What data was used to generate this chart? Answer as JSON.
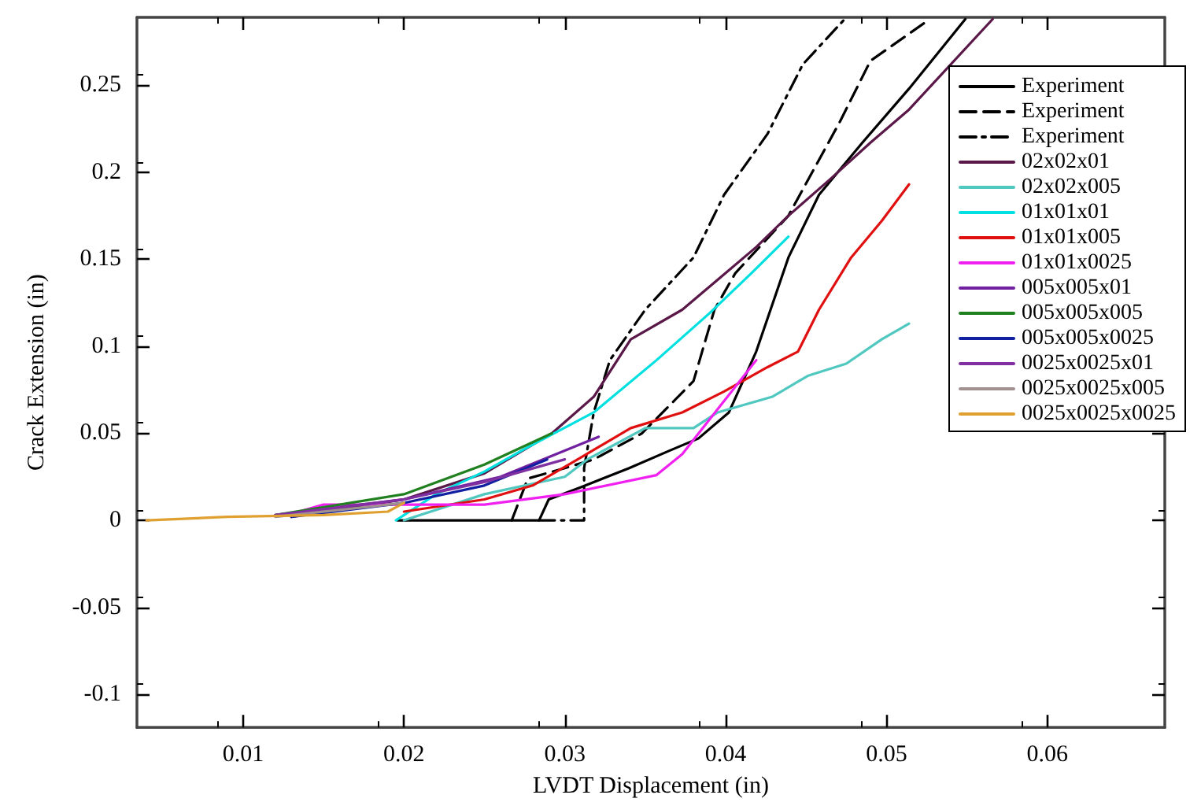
{
  "chart_data": {
    "type": "line",
    "xlabel": "LVDT Displacement (in)",
    "ylabel": "Crack Extension (in)",
    "xlim": [
      0.0034,
      0.0673
    ],
    "xticks": [
      0.01,
      0.02,
      0.03,
      0.04,
      0.05,
      0.06
    ],
    "ylim": [
      -0.119,
      0.289
    ],
    "yticks": [
      -0.1,
      -0.05,
      0,
      0.05,
      0.1,
      0.15,
      0.2,
      0.25
    ],
    "grid": false,
    "legend": "top right",
    "marker": "none",
    "series": [
      {
        "name": "Experiment",
        "color": "#000000",
        "line_style": "solid",
        "x": [
          0.0196,
          0.0284,
          0.029,
          0.031,
          0.034,
          0.0365,
          0.0383,
          0.0402,
          0.0419,
          0.0439,
          0.0458,
          0.0485,
          0.0514,
          0.0549
        ],
        "values": [
          0,
          0,
          0.012,
          0.019,
          0.03,
          0.04,
          0.047,
          0.062,
          0.097,
          0.151,
          0.187,
          0.217,
          0.248,
          0.288
        ]
      },
      {
        "name": "Experiment",
        "color": "#000000",
        "line_style": "dashed",
        "x": [
          0.0267,
          0.0277,
          0.03,
          0.0318,
          0.0348,
          0.038,
          0.0393,
          0.0406,
          0.0439,
          0.0471,
          0.049,
          0.0527
        ],
        "values": [
          0,
          0.024,
          0.03,
          0.035,
          0.05,
          0.08,
          0.121,
          0.142,
          0.175,
          0.229,
          0.264,
          0.288
        ]
      },
      {
        "name": "Experiment",
        "color": "#000000",
        "line_style": "dashdot",
        "x": [
          0.0284,
          0.0312,
          0.0312,
          0.0318,
          0.0328,
          0.035,
          0.038,
          0.0399,
          0.0426,
          0.0448,
          0.0475
        ],
        "values": [
          0,
          0,
          0.03,
          0.062,
          0.092,
          0.121,
          0.151,
          0.187,
          0.222,
          0.262,
          0.289
        ]
      },
      {
        "name": "02x02x01",
        "color": "#5a1848",
        "x": [
          0.013,
          0.015,
          0.02,
          0.025,
          0.0292,
          0.0318,
          0.0341,
          0.0373,
          0.0396,
          0.0419,
          0.0439,
          0.0465,
          0.049,
          0.0514,
          0.0566
        ],
        "values": [
          0.002,
          0.005,
          0.012,
          0.027,
          0.05,
          0.071,
          0.104,
          0.121,
          0.139,
          0.157,
          0.175,
          0.196,
          0.217,
          0.236,
          0.288
        ]
      },
      {
        "name": "02x02x005",
        "color": "#50c8c0",
        "x": [
          0.02,
          0.025,
          0.03,
          0.0314,
          0.035,
          0.038,
          0.0395,
          0.0429,
          0.0451,
          0.0475,
          0.0497,
          0.0514
        ],
        "values": [
          0,
          0.015,
          0.025,
          0.035,
          0.053,
          0.053,
          0.062,
          0.071,
          0.083,
          0.09,
          0.104,
          0.113
        ]
      },
      {
        "name": "01x01x01",
        "color": "#00e0e0",
        "x": [
          0.0195,
          0.022,
          0.025,
          0.0275,
          0.0318,
          0.0357,
          0.039,
          0.0416,
          0.0439
        ],
        "values": [
          0,
          0.015,
          0.028,
          0.041,
          0.062,
          0.092,
          0.119,
          0.142,
          0.163
        ]
      },
      {
        "name": "01x01x005",
        "color": "#e01010",
        "x": [
          0.02,
          0.025,
          0.028,
          0.0308,
          0.0341,
          0.0373,
          0.0399,
          0.0426,
          0.0445,
          0.0458,
          0.0478,
          0.0497,
          0.0514
        ],
        "values": [
          0.005,
          0.012,
          0.02,
          0.035,
          0.053,
          0.062,
          0.074,
          0.088,
          0.097,
          0.121,
          0.151,
          0.172,
          0.193
        ]
      },
      {
        "name": "01x01x0025",
        "color": "#f020f0",
        "x": [
          0.0127,
          0.015,
          0.025,
          0.03,
          0.0357,
          0.0373,
          0.0396,
          0.0419
        ],
        "values": [
          0.003,
          0.009,
          0.009,
          0.015,
          0.026,
          0.038,
          0.065,
          0.092
        ]
      },
      {
        "name": "005x005x01",
        "color": "#7020a0",
        "x": [
          0.012,
          0.02,
          0.026,
          0.0321
        ],
        "values": [
          0.003,
          0.012,
          0.025,
          0.048
        ]
      },
      {
        "name": "005x005x005",
        "color": "#208020",
        "x": [
          0.012,
          0.02,
          0.025,
          0.0292
        ],
        "values": [
          0.003,
          0.015,
          0.032,
          0.05
        ]
      },
      {
        "name": "005x005x0025",
        "color": "#1020a0",
        "x": [
          0.013,
          0.02,
          0.025,
          0.0289
        ],
        "values": [
          0.002,
          0.01,
          0.02,
          0.035
        ]
      },
      {
        "name": "0025x0025x01",
        "color": "#8030a0",
        "x": [
          0.012,
          0.02,
          0.025,
          0.03
        ],
        "values": [
          0.003,
          0.012,
          0.022,
          0.035
        ]
      },
      {
        "name": "0025x0025x005",
        "color": "#a09090",
        "x": [
          0.012,
          0.02
        ],
        "values": [
          0.002,
          0.01
        ]
      },
      {
        "name": "0025x0025x0025",
        "color": "#e0a030",
        "x": [
          0.004,
          0.009,
          0.015,
          0.019,
          0.02
        ],
        "values": [
          0,
          0.002,
          0.003,
          0.005,
          0.01
        ]
      }
    ]
  }
}
